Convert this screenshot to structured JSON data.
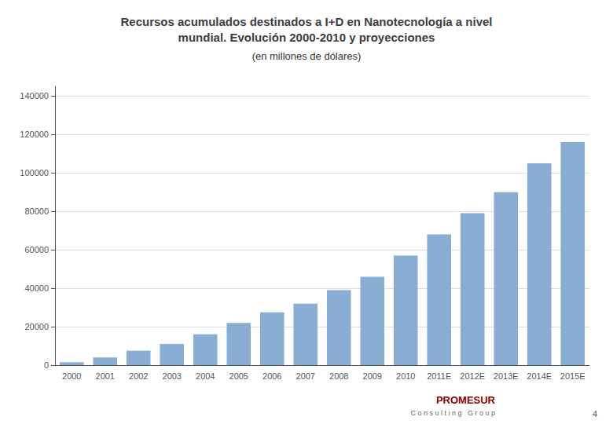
{
  "chart_data": {
    "type": "bar",
    "title": "Recursos acumulados destinados a I+D en Nanotecnología a nivel\nmundial. Evolución 2000-2010 y proyecciones",
    "subtitle": "(en millones de dólares)",
    "categories": [
      "2000",
      "2001",
      "2002",
      "2003",
      "2004",
      "2005",
      "2006",
      "2007",
      "2008",
      "2009",
      "2010",
      "2011E",
      "2012E",
      "2013E",
      "2014E",
      "2015E"
    ],
    "values": [
      1500,
      4000,
      7500,
      11000,
      16000,
      22000,
      27500,
      32000,
      39000,
      46000,
      57000,
      68000,
      79000,
      90000,
      105000,
      116000
    ],
    "color": "#8aadd4",
    "ylim": [
      0,
      145000
    ],
    "yticks": [
      0,
      20000,
      40000,
      60000,
      80000,
      100000,
      120000,
      140000
    ],
    "grid": true,
    "annotations": [
      "PROMESUR",
      "C o n s u l t i n g   G r o u p",
      "4"
    ]
  }
}
